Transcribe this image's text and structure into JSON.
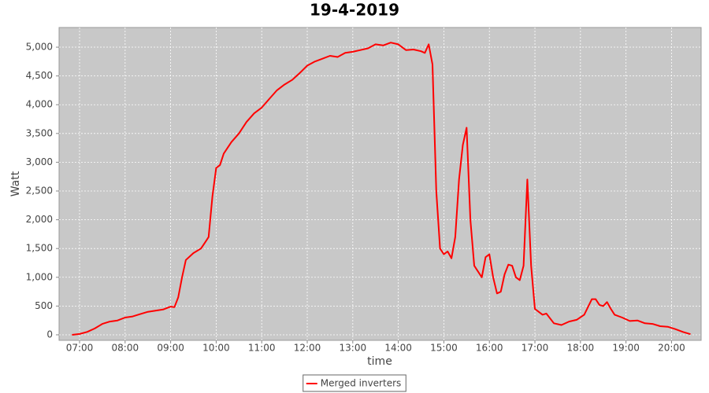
{
  "chart_data": {
    "type": "line",
    "title": "19-4-2019",
    "x_label": "time",
    "y_label": "Watt",
    "x": [
      "06:50",
      "07:00",
      "07:10",
      "07:20",
      "07:30",
      "07:40",
      "07:50",
      "08:00",
      "08:10",
      "08:20",
      "08:30",
      "08:40",
      "08:50",
      "09:00",
      "09:05",
      "09:10",
      "09:15",
      "09:20",
      "09:30",
      "09:40",
      "09:45",
      "09:50",
      "09:55",
      "10:00",
      "10:05",
      "10:10",
      "10:20",
      "10:30",
      "10:40",
      "10:50",
      "11:00",
      "11:10",
      "11:20",
      "11:30",
      "11:40",
      "11:50",
      "12:00",
      "12:10",
      "12:20",
      "12:30",
      "12:40",
      "12:50",
      "13:00",
      "13:10",
      "13:20",
      "13:30",
      "13:40",
      "13:50",
      "14:00",
      "14:10",
      "14:20",
      "14:30",
      "14:35",
      "14:40",
      "14:45",
      "14:50",
      "14:55",
      "15:00",
      "15:05",
      "15:10",
      "15:15",
      "15:20",
      "15:25",
      "15:30",
      "15:35",
      "15:40",
      "15:50",
      "15:55",
      "16:00",
      "16:05",
      "16:10",
      "16:15",
      "16:20",
      "16:25",
      "16:30",
      "16:35",
      "16:40",
      "16:45",
      "16:50",
      "16:55",
      "17:00",
      "17:10",
      "17:15",
      "17:25",
      "17:35",
      "17:45",
      "17:55",
      "18:05",
      "18:15",
      "18:20",
      "18:25",
      "18:30",
      "18:35",
      "18:40",
      "18:45",
      "18:55",
      "19:05",
      "19:15",
      "19:25",
      "19:35",
      "19:45",
      "19:55",
      "20:05",
      "20:15",
      "20:25"
    ],
    "series": [
      {
        "name": "Merged inverters",
        "color": "#ff0000",
        "values": [
          0,
          15,
          50,
          110,
          190,
          230,
          250,
          300,
          320,
          360,
          400,
          420,
          440,
          490,
          480,
          650,
          1000,
          1300,
          1420,
          1500,
          1600,
          1700,
          2400,
          2900,
          2950,
          3150,
          3350,
          3500,
          3700,
          3850,
          3950,
          4100,
          4250,
          4350,
          4430,
          4550,
          4680,
          4750,
          4800,
          4850,
          4830,
          4900,
          4920,
          4950,
          4980,
          5050,
          5030,
          5080,
          5050,
          4950,
          4960,
          4930,
          4900,
          5050,
          4700,
          2500,
          1500,
          1400,
          1450,
          1330,
          1700,
          2700,
          3300,
          3600,
          2000,
          1200,
          1000,
          1350,
          1400,
          1000,
          720,
          750,
          1050,
          1220,
          1200,
          1000,
          950,
          1200,
          2700,
          1200,
          450,
          350,
          370,
          200,
          170,
          230,
          260,
          350,
          620,
          620,
          520,
          500,
          570,
          450,
          350,
          300,
          240,
          250,
          200,
          190,
          150,
          140,
          100,
          50,
          10
        ]
      }
    ],
    "xlim": [
      "06:33",
      "20:39"
    ],
    "xticks": [
      "07:00",
      "08:00",
      "09:00",
      "10:00",
      "11:00",
      "12:00",
      "13:00",
      "14:00",
      "15:00",
      "16:00",
      "17:00",
      "18:00",
      "19:00",
      "20:00"
    ],
    "ylim": [
      -96,
      5342
    ],
    "yticks": [
      0,
      500,
      {
        "value": 1000,
        "label": "1,000"
      },
      {
        "value": 1500,
        "label": "1,500"
      },
      {
        "value": 2000,
        "label": "2,000"
      },
      {
        "value": 2500,
        "label": "2,500"
      },
      {
        "value": 3000,
        "label": "3,000"
      },
      {
        "value": 3500,
        "label": "3,500"
      },
      {
        "value": 4000,
        "label": "4,000"
      },
      {
        "value": 4500,
        "label": "4,500"
      },
      {
        "value": 5000,
        "label": "5,000"
      }
    ],
    "grid": true,
    "legend": "bottom"
  }
}
